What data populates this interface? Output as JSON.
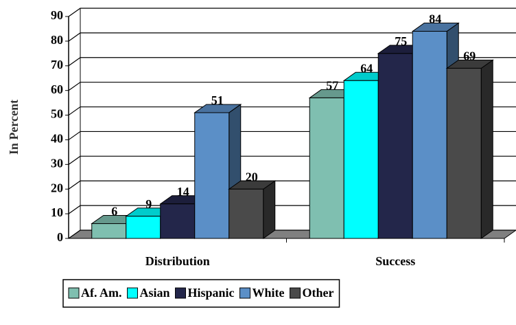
{
  "chart_data": {
    "type": "bar3d",
    "y_label": "In Percent",
    "categories": [
      "Distribution",
      "Success"
    ],
    "series": [
      {
        "name": "Af. Am.",
        "color": "#7fbfb0",
        "values": [
          6,
          57
        ]
      },
      {
        "name": "Asian",
        "color": "#00ffff",
        "values": [
          9,
          64
        ]
      },
      {
        "name": "Hispanic",
        "color": "#23264a",
        "values": [
          14,
          75
        ]
      },
      {
        "name": "White",
        "color": "#5b8fc7",
        "values": [
          51,
          84
        ]
      },
      {
        "name": "Other",
        "color": "#4a4a4a",
        "values": [
          20,
          69
        ]
      }
    ],
    "ylim": [
      0,
      90
    ],
    "yticks": [
      0,
      10,
      20,
      30,
      40,
      50,
      60,
      70,
      80,
      90
    ],
    "grid": true,
    "legend": "bottom"
  }
}
